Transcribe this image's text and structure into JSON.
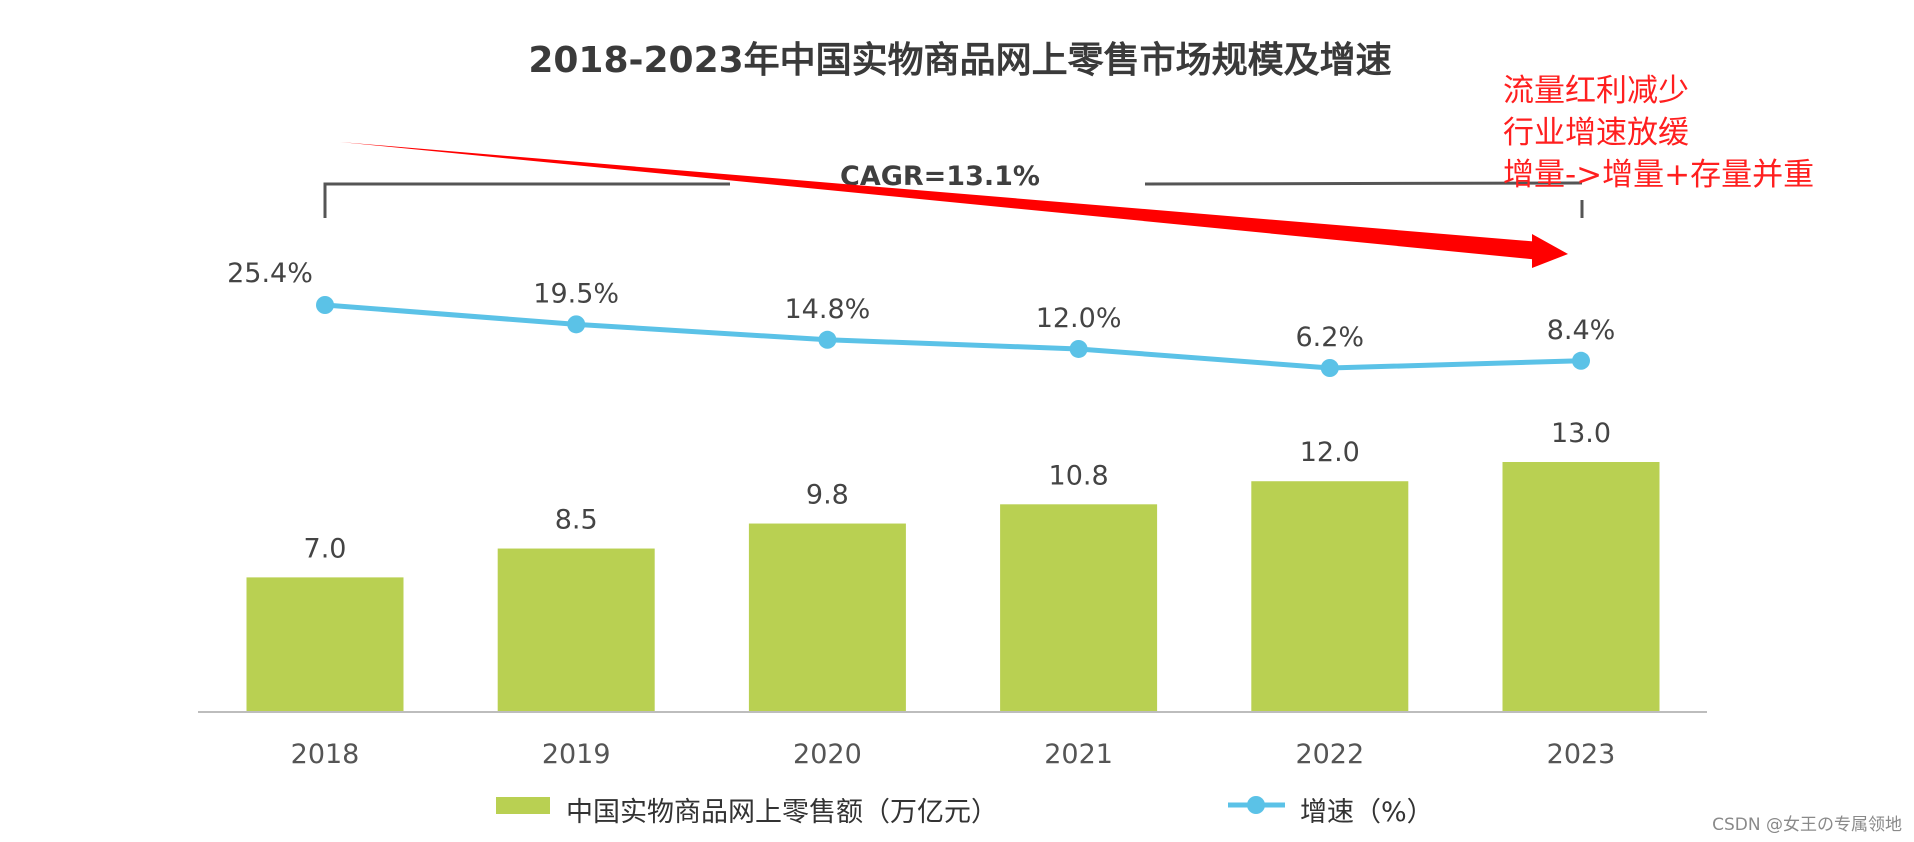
{
  "chart_data": {
    "type": "bar+line",
    "title": "2018-2023年中国实物商品网上零售市场规模及增速",
    "categories": [
      "2018",
      "2019",
      "2020",
      "2021",
      "2022",
      "2023"
    ],
    "series": [
      {
        "name": "中国实物商品网上零售额（万亿元）",
        "type": "bar",
        "values": [
          7.0,
          8.5,
          9.8,
          10.8,
          12.0,
          13.0
        ],
        "labels": [
          "7.0",
          "8.5",
          "9.8",
          "10.8",
          "12.0",
          "13.0"
        ],
        "color": "#b9d052"
      },
      {
        "name": "增速（%）",
        "type": "line",
        "values": [
          25.4,
          19.5,
          14.8,
          12.0,
          6.2,
          8.4
        ],
        "labels": [
          "25.4%",
          "19.5%",
          "14.8%",
          "12.0%",
          "6.2%",
          "8.4%"
        ],
        "color": "#5bc2e7"
      }
    ],
    "annotations": {
      "cagr": "CAGR=13.1%",
      "notes": [
        "流量红利减少",
        "行业增速放缓",
        "增量->增量+存量并重"
      ],
      "trend_arrow_color": "#ff0000",
      "note_color": "#ff2a2a"
    },
    "watermark": "CSDN @女王の专属领地",
    "bar_ylim": [
      0,
      16
    ],
    "line_ylim": [
      0,
      30
    ]
  }
}
